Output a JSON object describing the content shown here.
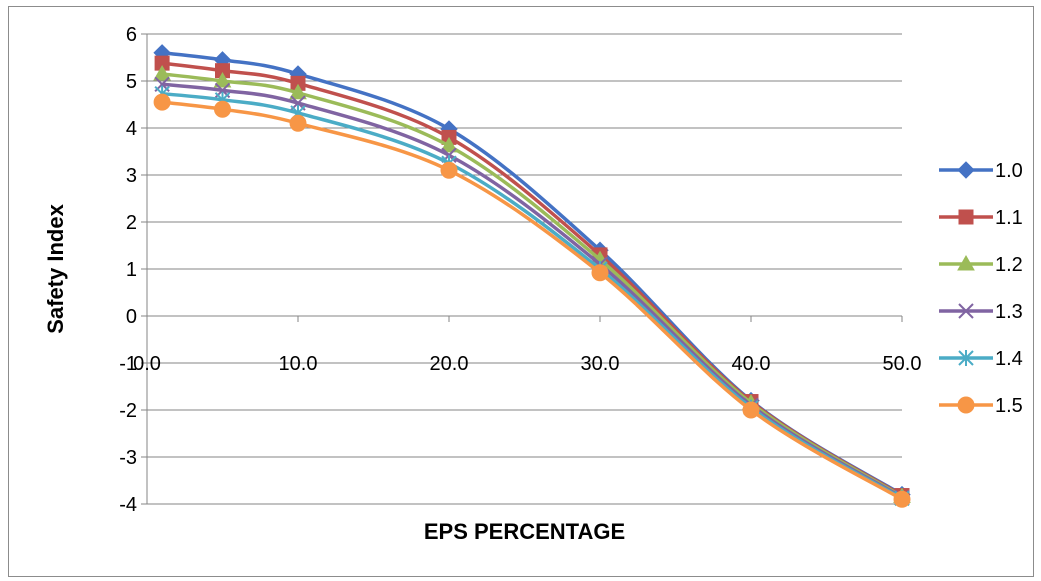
{
  "chart_data": {
    "type": "line",
    "title": "",
    "xlabel": "EPS PERCENTAGE",
    "ylabel": "Safety Index",
    "x": [
      1,
      5,
      10,
      20,
      30,
      40,
      50
    ],
    "xlim": [
      0,
      50
    ],
    "ylim": [
      -4,
      6
    ],
    "x_ticks": [
      0,
      10,
      20,
      30,
      40,
      50
    ],
    "x_tick_labels": [
      "0.0",
      "10.0",
      "20.0",
      "30.0",
      "40.0",
      "50.0"
    ],
    "y_ticks": [
      6,
      5,
      4,
      3,
      2,
      1,
      0,
      -1,
      -2,
      -3,
      -4
    ],
    "y_tick_labels": [
      "6",
      "5",
      "4",
      "3",
      "2",
      "1",
      "0",
      "-1",
      "-2",
      "-3",
      "-4"
    ],
    "grid": "horizontal",
    "legend_position": "right",
    "smooth": true,
    "series": [
      {
        "name": "1.0",
        "color": "#4472C4",
        "marker": "diamond",
        "values": [
          5.6,
          5.45,
          5.15,
          3.98,
          1.4,
          -1.8,
          -3.8
        ]
      },
      {
        "name": "1.1",
        "color": "#C0504D",
        "marker": "square",
        "values": [
          5.38,
          5.22,
          4.95,
          3.8,
          1.3,
          -1.82,
          -3.82
        ]
      },
      {
        "name": "1.2",
        "color": "#9BBB59",
        "marker": "triangle",
        "values": [
          5.15,
          5.0,
          4.75,
          3.62,
          1.2,
          -1.85,
          -3.84
        ]
      },
      {
        "name": "1.3",
        "color": "#8064A2",
        "marker": "x",
        "values": [
          4.93,
          4.8,
          4.53,
          3.42,
          1.1,
          -1.9,
          -3.86
        ]
      },
      {
        "name": "1.4",
        "color": "#4BACC6",
        "marker": "star",
        "values": [
          4.73,
          4.6,
          4.32,
          3.25,
          1.0,
          -1.95,
          -3.88
        ]
      },
      {
        "name": "1.5",
        "color": "#F79646",
        "marker": "circle",
        "values": [
          4.55,
          4.4,
          4.1,
          3.1,
          0.92,
          -2.0,
          -3.9
        ]
      }
    ]
  }
}
